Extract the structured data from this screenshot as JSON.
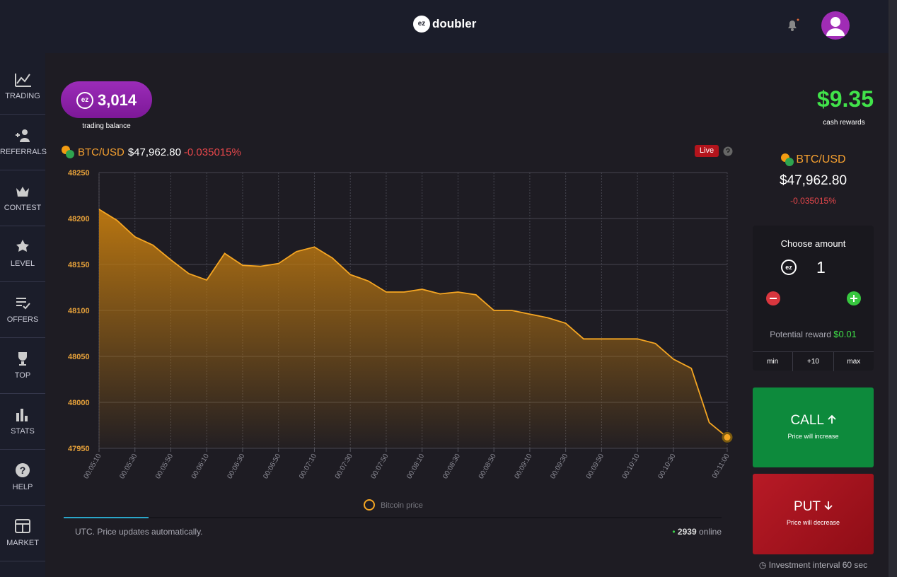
{
  "header": {
    "logo_badge": "ez",
    "logo_text": "doubler"
  },
  "sidebar": [
    "TRADING",
    "REFERRALS",
    "CONTEST",
    "LEVEL",
    "OFFERS",
    "TOP",
    "STATS",
    "HELP",
    "MARKET"
  ],
  "balance": {
    "badge": "ez",
    "amount": "3,014",
    "label": "trading balance"
  },
  "cash_rewards": {
    "amount": "$9.35",
    "label": "cash rewards"
  },
  "ticker": {
    "pair": "BTC/USD",
    "price": "$47,962.80",
    "change": "-0.035015%",
    "status": "Live"
  },
  "chart_data": {
    "type": "area",
    "categories": [
      "00:05:10",
      null,
      "00:05:30",
      null,
      "00:05:50",
      null,
      "00:06:10",
      null,
      "00:06:30",
      null,
      "00:06:50",
      null,
      "00:07:10",
      null,
      "00:07:30",
      null,
      "00:07:50",
      null,
      "00:08:10",
      null,
      "00:08:30",
      null,
      "00:08:50",
      null,
      "00:09:10",
      null,
      "00:09:30",
      null,
      "00:09:50",
      null,
      "00:10:10",
      null,
      "00:10:30",
      null,
      null,
      "00:11:00"
    ],
    "series": [
      {
        "name": "Bitcoin price",
        "color": "#f5a623",
        "values": [
          48210,
          48198,
          48180,
          48171,
          48155,
          48140,
          48133,
          48162,
          48149,
          48148,
          48151,
          48164,
          48169,
          48157,
          48139,
          48132,
          48120,
          48120,
          48123,
          48118,
          48120,
          48117,
          48100,
          48100,
          48096,
          48092,
          48086,
          48069,
          48069,
          48069,
          48069,
          48064,
          48047,
          48037,
          47978,
          47962
        ]
      }
    ],
    "ylim": [
      47950,
      48250
    ],
    "yticks": [
      47950,
      48000,
      48050,
      48100,
      48150,
      48200,
      48250
    ],
    "grid": true
  },
  "footer": {
    "note": "UTC. Price updates automatically.",
    "online_count": "2939",
    "online_label": "online"
  },
  "trade_panel": {
    "choose_label": "Choose amount",
    "badge": "ez",
    "amount": "1",
    "reward_label": "Potential reward",
    "reward": "$0.01",
    "presets": [
      "min",
      "+10",
      "max"
    ],
    "call": {
      "label": "CALL",
      "hint": "Price will increase"
    },
    "put": {
      "label": "PUT",
      "hint": "Price will decrease"
    },
    "interval": "Investment interval 60 sec"
  }
}
